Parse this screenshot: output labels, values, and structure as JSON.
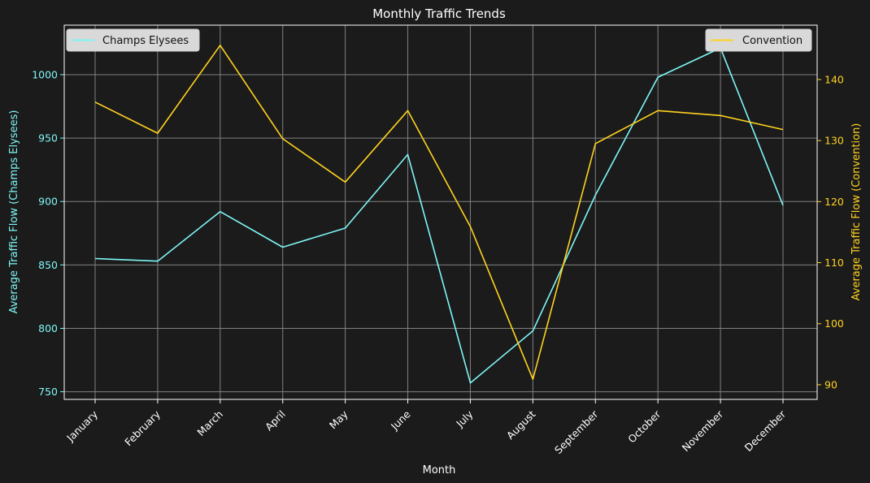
{
  "chart_data": {
    "type": "line",
    "title": "Monthly Traffic Trends",
    "xlabel": "Month",
    "categories": [
      "January",
      "February",
      "March",
      "April",
      "May",
      "June",
      "July",
      "August",
      "September",
      "October",
      "November",
      "December"
    ],
    "series": [
      {
        "name": "Champs Elysees",
        "axis": "left",
        "color": "#7ff5f5",
        "values": [
          855,
          853,
          892,
          864,
          879,
          937,
          757,
          798,
          905,
          998,
          1021,
          897
        ]
      },
      {
        "name": "Convention",
        "axis": "right",
        "color": "#ffd21f",
        "values": [
          136.3,
          131.2,
          145.6,
          130.3,
          123.2,
          134.9,
          115.9,
          90.9,
          129.5,
          134.9,
          134.1,
          131.8
        ]
      }
    ],
    "y_left": {
      "label": "Average Traffic Flow (Champs Elysees)",
      "ylim": [
        744,
        1039
      ],
      "ticks": [
        750,
        800,
        850,
        900,
        950,
        1000
      ],
      "color": "#7ff5f5"
    },
    "y_right": {
      "label": "Average Traffic Flow (Convention)",
      "ylim": [
        87.6,
        148.9
      ],
      "ticks": [
        90,
        100,
        110,
        120,
        130,
        140
      ],
      "color": "#ffd21f"
    },
    "grid": true,
    "legend_left": "top-left",
    "legend_right": "top-right",
    "background": "#1b1b1b",
    "text_color": "#ffffff",
    "grid_color": "#808080"
  }
}
